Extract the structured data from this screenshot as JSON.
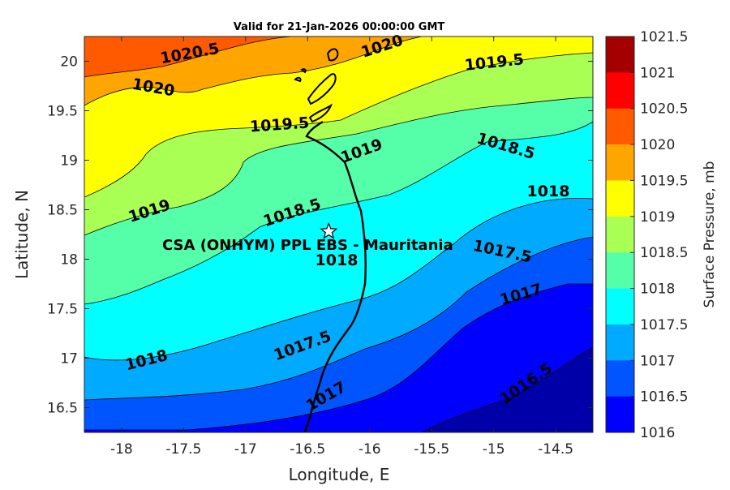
{
  "title": "Valid for 21-Jan-2026 00:00:00 GMT",
  "xlabel": "Longitude, E",
  "ylabel": "Latitude, N",
  "x_ticks": [
    "-18",
    "-17.5",
    "-17",
    "-16.5",
    "-16",
    "-15.5",
    "-15",
    "-14.5"
  ],
  "y_ticks": [
    "20",
    "19.5",
    "19",
    "18.5",
    "18",
    "17.5",
    "17",
    "16.5"
  ],
  "colorbar": {
    "label": "Surface Pressure, mb",
    "levels": [
      "1021.5",
      "1021",
      "1020.5",
      "1020",
      "1019.5",
      "1019",
      "1018.5",
      "1018",
      "1017.5",
      "1017",
      "1016.5",
      "1016"
    ],
    "colors": [
      "#a50000",
      "#ff0000",
      "#ff5a00",
      "#ffa500",
      "#ffff00",
      "#aaff55",
      "#55ffaa",
      "#00ffff",
      "#00aaff",
      "#0055ff",
      "#0000ff",
      "#0000a8"
    ]
  },
  "site": {
    "name": "CSA (ONHYM) PPL EBS  - Mauritania",
    "lon": -16.33,
    "lat": 18.28
  },
  "contour_labels": [
    "1020.5",
    "1020",
    "1019.5",
    "1020",
    "1019.5",
    "1019",
    "1018.5",
    "1019",
    "1018.5",
    "1018",
    "1018",
    "1017.5",
    "1017",
    "1018",
    "1017.5",
    "1017",
    "1016.5"
  ],
  "chart_data": {
    "type": "heatmap",
    "title": "Valid for 21-Jan-2026 00:00:00 GMT",
    "xlabel": "Longitude, E",
    "ylabel": "Latitude, N",
    "xlim": [
      -18.3,
      -14.2
    ],
    "ylim": [
      16.25,
      20.25
    ],
    "value_range": [
      1016,
      1021.5
    ],
    "units": "mb",
    "colorbar_label": "Surface Pressure, mb",
    "contour_interval": 0.5,
    "site_marker": {
      "label": "CSA (ONHYM) PPL EBS  - Mauritania",
      "lon": -16.33,
      "lat": 18.28
    }
  }
}
